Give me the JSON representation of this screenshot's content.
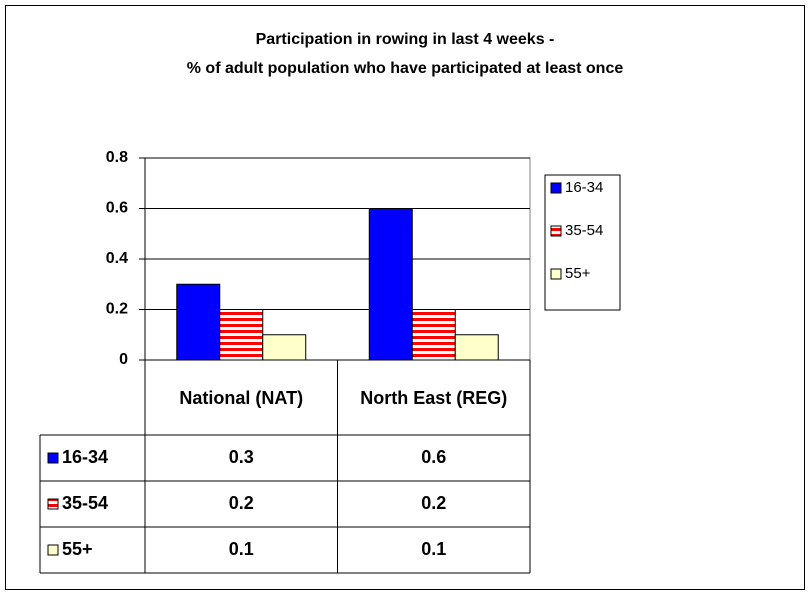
{
  "chart_data": {
    "type": "bar",
    "title": [
      "Participation in rowing in last 4 weeks -",
      "% of adult population who have participated at least once"
    ],
    "categories": [
      "National (NAT)",
      "North East (REG)"
    ],
    "series": [
      {
        "name": "16-34",
        "color": "#0000ff",
        "values": [
          0.3,
          0.6
        ]
      },
      {
        "name": "35-54",
        "color": "#ff0000",
        "pattern": "horizontal",
        "values": [
          0.2,
          0.2
        ]
      },
      {
        "name": "55+",
        "color": "#ffffcc",
        "values": [
          0.1,
          0.1
        ]
      }
    ],
    "ylim": [
      0,
      0.8
    ],
    "yticks": [
      0,
      0.2,
      0.4,
      0.6,
      0.8
    ],
    "grid": true,
    "legend": "right",
    "data_table": true
  }
}
